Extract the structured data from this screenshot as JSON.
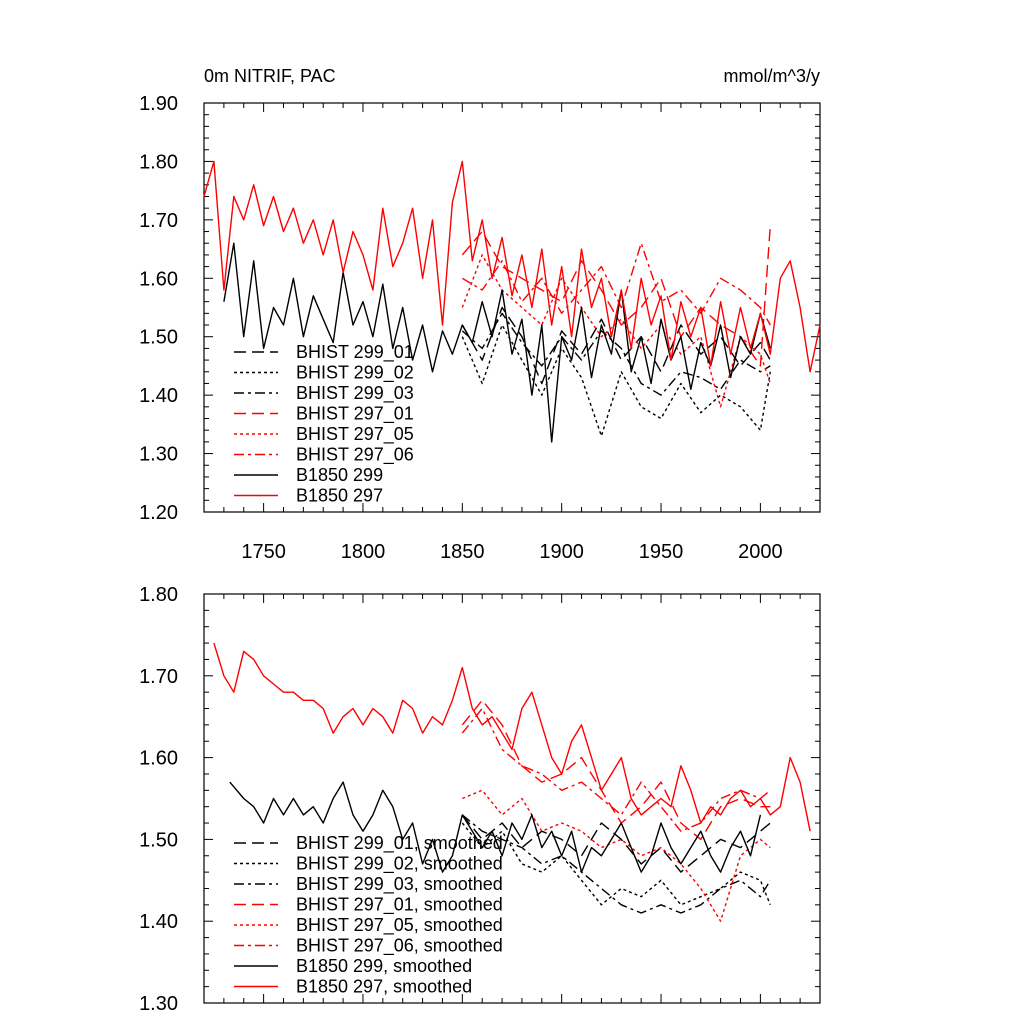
{
  "header": {
    "title": "0m NITRIF, PAC",
    "units": "mmol/m^3/y"
  },
  "colors": {
    "black_series": "#000000",
    "red_series": "#ff0000"
  },
  "chart_data": [
    {
      "type": "line",
      "title": "0m NITRIF, PAC",
      "units_label": "mmol/m^3/y",
      "xlim": [
        1720,
        2030
      ],
      "ylim": [
        1.2,
        1.9
      ],
      "x_ticks": [
        "1750",
        "1800",
        "1850",
        "1900",
        "1950",
        "2000"
      ],
      "y_ticks": [
        "1.20",
        "1.30",
        "1.40",
        "1.50",
        "1.60",
        "1.70",
        "1.80",
        "1.90"
      ],
      "legend_position": "lower-left",
      "series": [
        {
          "name": "BHIST 299_01",
          "color": "#000000",
          "dash": "long-dash",
          "x": [
            1850,
            1860,
            1870,
            1880,
            1890,
            1900,
            1910,
            1920,
            1930,
            1940,
            1950,
            1960,
            1970,
            1980,
            1990,
            2000,
            2005
          ],
          "y": [
            1.52,
            1.46,
            1.55,
            1.5,
            1.42,
            1.51,
            1.47,
            1.53,
            1.46,
            1.5,
            1.44,
            1.52,
            1.47,
            1.5,
            1.45,
            1.49,
            1.46
          ]
        },
        {
          "name": "BHIST 299_02",
          "color": "#000000",
          "dash": "dot",
          "x": [
            1850,
            1860,
            1870,
            1880,
            1890,
            1900,
            1910,
            1920,
            1930,
            1940,
            1950,
            1960,
            1970,
            1980,
            1990,
            2000,
            2005
          ],
          "y": [
            1.5,
            1.42,
            1.52,
            1.46,
            1.4,
            1.48,
            1.43,
            1.33,
            1.44,
            1.38,
            1.36,
            1.42,
            1.37,
            1.4,
            1.38,
            1.34,
            1.44
          ]
        },
        {
          "name": "BHIST 299_03",
          "color": "#000000",
          "dash": "dash-dot",
          "x": [
            1850,
            1860,
            1870,
            1880,
            1890,
            1900,
            1910,
            1920,
            1930,
            1940,
            1950,
            1960,
            1970,
            1980,
            1990,
            2000,
            2005
          ],
          "y": [
            1.51,
            1.48,
            1.54,
            1.49,
            1.45,
            1.5,
            1.46,
            1.51,
            1.48,
            1.42,
            1.4,
            1.44,
            1.43,
            1.41,
            1.46,
            1.44,
            1.45
          ]
        },
        {
          "name": "BHIST 297_01",
          "color": "#ff0000",
          "dash": "long-dash",
          "x": [
            1850,
            1860,
            1870,
            1880,
            1890,
            1900,
            1910,
            1920,
            1930,
            1940,
            1950,
            1960,
            1970,
            1980,
            1990,
            2000,
            2005
          ],
          "y": [
            1.64,
            1.68,
            1.62,
            1.6,
            1.58,
            1.56,
            1.63,
            1.58,
            1.52,
            1.55,
            1.6,
            1.5,
            1.55,
            1.52,
            1.5,
            1.45,
            1.69
          ]
        },
        {
          "name": "BHIST 297_05",
          "color": "#ff0000",
          "dash": "dot",
          "x": [
            1850,
            1860,
            1870,
            1880,
            1890,
            1900,
            1910,
            1920,
            1930,
            1940,
            1950,
            1960,
            1970,
            1980,
            1990,
            2000,
            2005
          ],
          "y": [
            1.55,
            1.64,
            1.58,
            1.55,
            1.52,
            1.6,
            1.55,
            1.5,
            1.53,
            1.48,
            1.52,
            1.47,
            1.5,
            1.38,
            1.5,
            1.47,
            1.42
          ]
        },
        {
          "name": "BHIST 297_06",
          "color": "#ff0000",
          "dash": "dash-dot",
          "x": [
            1850,
            1860,
            1870,
            1880,
            1890,
            1900,
            1910,
            1920,
            1930,
            1940,
            1950,
            1960,
            1970,
            1980,
            1990,
            2000,
            2005
          ],
          "y": [
            1.6,
            1.58,
            1.63,
            1.56,
            1.6,
            1.54,
            1.58,
            1.62,
            1.55,
            1.66,
            1.56,
            1.58,
            1.54,
            1.6,
            1.58,
            1.55,
            1.52
          ]
        },
        {
          "name": "B1850 299",
          "color": "#000000",
          "dash": "solid",
          "x": [
            1730,
            1735,
            1740,
            1745,
            1750,
            1755,
            1760,
            1765,
            1770,
            1775,
            1780,
            1785,
            1790,
            1795,
            1800,
            1805,
            1810,
            1815,
            1820,
            1825,
            1830,
            1835,
            1840,
            1845,
            1850,
            1855,
            1860,
            1865,
            1870,
            1875,
            1880,
            1885,
            1890,
            1895,
            1900,
            1905,
            1910,
            1915,
            1920,
            1925,
            1930,
            1935,
            1940,
            1945,
            1950,
            1955,
            1960,
            1965,
            1970,
            1975,
            1980,
            1985,
            1990,
            1995,
            2000,
            2005
          ],
          "y": [
            1.56,
            1.66,
            1.5,
            1.63,
            1.48,
            1.55,
            1.52,
            1.6,
            1.5,
            1.57,
            1.53,
            1.49,
            1.61,
            1.52,
            1.56,
            1.5,
            1.59,
            1.48,
            1.55,
            1.46,
            1.52,
            1.44,
            1.51,
            1.47,
            1.52,
            1.49,
            1.56,
            1.5,
            1.58,
            1.47,
            1.53,
            1.4,
            1.52,
            1.32,
            1.5,
            1.46,
            1.55,
            1.43,
            1.52,
            1.47,
            1.58,
            1.44,
            1.5,
            1.42,
            1.53,
            1.46,
            1.5,
            1.41,
            1.49,
            1.45,
            1.52,
            1.43,
            1.5,
            1.47,
            1.54,
            1.48
          ]
        },
        {
          "name": "B1850 297",
          "color": "#ff0000",
          "dash": "solid",
          "x": [
            1720,
            1725,
            1730,
            1735,
            1740,
            1745,
            1750,
            1755,
            1760,
            1765,
            1770,
            1775,
            1780,
            1785,
            1790,
            1795,
            1800,
            1805,
            1810,
            1815,
            1820,
            1825,
            1830,
            1835,
            1840,
            1845,
            1850,
            1855,
            1860,
            1865,
            1870,
            1875,
            1880,
            1885,
            1890,
            1895,
            1900,
            1905,
            1910,
            1915,
            1920,
            1925,
            1930,
            1935,
            1940,
            1945,
            1950,
            1955,
            1960,
            1965,
            1970,
            1975,
            1980,
            1985,
            1990,
            1995,
            2000,
            2005,
            2010,
            2015,
            2020,
            2025,
            2030
          ],
          "y": [
            1.74,
            1.8,
            1.58,
            1.74,
            1.7,
            1.76,
            1.69,
            1.74,
            1.68,
            1.72,
            1.66,
            1.7,
            1.64,
            1.7,
            1.61,
            1.68,
            1.64,
            1.58,
            1.72,
            1.62,
            1.66,
            1.72,
            1.6,
            1.7,
            1.52,
            1.73,
            1.8,
            1.63,
            1.7,
            1.6,
            1.67,
            1.57,
            1.64,
            1.55,
            1.65,
            1.52,
            1.62,
            1.5,
            1.65,
            1.55,
            1.6,
            1.5,
            1.58,
            1.48,
            1.6,
            1.52,
            1.57,
            1.46,
            1.56,
            1.5,
            1.55,
            1.45,
            1.56,
            1.47,
            1.55,
            1.48,
            1.54,
            1.47,
            1.6,
            1.63,
            1.55,
            1.44,
            1.52
          ]
        }
      ]
    },
    {
      "type": "line",
      "xlim": [
        1720,
        2030
      ],
      "ylim": [
        1.3,
        1.8
      ],
      "y_ticks": [
        "1.30",
        "1.40",
        "1.50",
        "1.60",
        "1.70",
        "1.80"
      ],
      "legend_position": "lower-left",
      "series": [
        {
          "name": "BHIST 299_01, smoothed",
          "color": "#000000",
          "dash": "long-dash",
          "x": [
            1850,
            1860,
            1870,
            1880,
            1890,
            1900,
            1910,
            1920,
            1930,
            1940,
            1950,
            1960,
            1970,
            1980,
            1990,
            2000,
            2005
          ],
          "y": [
            1.53,
            1.5,
            1.52,
            1.49,
            1.51,
            1.5,
            1.48,
            1.52,
            1.5,
            1.47,
            1.49,
            1.46,
            1.48,
            1.5,
            1.49,
            1.51,
            1.52
          ]
        },
        {
          "name": "BHIST 299_02, smoothed",
          "color": "#000000",
          "dash": "dot",
          "x": [
            1850,
            1860,
            1870,
            1880,
            1890,
            1900,
            1910,
            1920,
            1930,
            1940,
            1950,
            1960,
            1970,
            1980,
            1990,
            2000,
            2005
          ],
          "y": [
            1.52,
            1.49,
            1.51,
            1.47,
            1.46,
            1.48,
            1.45,
            1.42,
            1.44,
            1.43,
            1.45,
            1.42,
            1.43,
            1.44,
            1.46,
            1.45,
            1.42
          ]
        },
        {
          "name": "BHIST 299_03, smoothed",
          "color": "#000000",
          "dash": "dash-dot",
          "x": [
            1850,
            1860,
            1870,
            1880,
            1890,
            1900,
            1910,
            1920,
            1930,
            1940,
            1950,
            1960,
            1970,
            1980,
            1990,
            2000,
            2005
          ],
          "y": [
            1.53,
            1.51,
            1.5,
            1.49,
            1.47,
            1.48,
            1.46,
            1.44,
            1.42,
            1.41,
            1.42,
            1.41,
            1.42,
            1.44,
            1.45,
            1.43,
            1.45
          ]
        },
        {
          "name": "BHIST 297_01, smoothed",
          "color": "#ff0000",
          "dash": "long-dash",
          "x": [
            1850,
            1860,
            1870,
            1880,
            1890,
            1900,
            1910,
            1920,
            1930,
            1940,
            1950,
            1960,
            1970,
            1980,
            1990,
            2000,
            2005
          ],
          "y": [
            1.64,
            1.67,
            1.64,
            1.59,
            1.57,
            1.58,
            1.6,
            1.56,
            1.52,
            1.54,
            1.57,
            1.52,
            1.5,
            1.54,
            1.55,
            1.54,
            1.54
          ]
        },
        {
          "name": "BHIST 297_05, smoothed",
          "color": "#ff0000",
          "dash": "dot",
          "x": [
            1850,
            1860,
            1870,
            1880,
            1890,
            1900,
            1910,
            1920,
            1930,
            1940,
            1950,
            1960,
            1970,
            1980,
            1990,
            2000,
            2005
          ],
          "y": [
            1.55,
            1.56,
            1.53,
            1.55,
            1.51,
            1.52,
            1.51,
            1.49,
            1.5,
            1.48,
            1.49,
            1.47,
            1.44,
            1.4,
            1.48,
            1.5,
            1.49
          ]
        },
        {
          "name": "BHIST 297_06, smoothed",
          "color": "#ff0000",
          "dash": "dash-dot",
          "x": [
            1850,
            1860,
            1870,
            1880,
            1890,
            1900,
            1910,
            1920,
            1930,
            1940,
            1950,
            1960,
            1970,
            1980,
            1990,
            2000,
            2005
          ],
          "y": [
            1.63,
            1.66,
            1.61,
            1.59,
            1.58,
            1.56,
            1.57,
            1.55,
            1.53,
            1.57,
            1.54,
            1.51,
            1.52,
            1.55,
            1.56,
            1.55,
            1.56
          ]
        },
        {
          "name": "B1850 299, smoothed",
          "color": "#000000",
          "dash": "solid",
          "x": [
            1733,
            1740,
            1745,
            1750,
            1755,
            1760,
            1765,
            1770,
            1775,
            1780,
            1785,
            1790,
            1795,
            1800,
            1805,
            1810,
            1815,
            1820,
            1825,
            1830,
            1835,
            1840,
            1845,
            1850,
            1855,
            1860,
            1865,
            1870,
            1875,
            1880,
            1885,
            1890,
            1895,
            1900,
            1905,
            1910,
            1915,
            1920,
            1925,
            1930,
            1935,
            1940,
            1945,
            1950,
            1955,
            1960,
            1965,
            1970,
            1975,
            1980,
            1985,
            1990,
            1995,
            2000
          ],
          "y": [
            1.57,
            1.55,
            1.54,
            1.52,
            1.55,
            1.53,
            1.55,
            1.53,
            1.54,
            1.52,
            1.55,
            1.57,
            1.53,
            1.51,
            1.53,
            1.56,
            1.54,
            1.5,
            1.52,
            1.47,
            1.5,
            1.46,
            1.48,
            1.53,
            1.51,
            1.49,
            1.51,
            1.48,
            1.52,
            1.5,
            1.53,
            1.49,
            1.51,
            1.48,
            1.51,
            1.46,
            1.49,
            1.48,
            1.5,
            1.52,
            1.49,
            1.46,
            1.48,
            1.52,
            1.49,
            1.47,
            1.49,
            1.51,
            1.48,
            1.46,
            1.49,
            1.51,
            1.48,
            1.53
          ]
        },
        {
          "name": "B1850 297, smoothed",
          "color": "#ff0000",
          "dash": "solid",
          "x": [
            1725,
            1730,
            1735,
            1740,
            1745,
            1750,
            1755,
            1760,
            1765,
            1770,
            1775,
            1780,
            1785,
            1790,
            1795,
            1800,
            1805,
            1810,
            1815,
            1820,
            1825,
            1830,
            1835,
            1840,
            1845,
            1850,
            1855,
            1860,
            1865,
            1870,
            1875,
            1880,
            1885,
            1890,
            1895,
            1900,
            1905,
            1910,
            1915,
            1920,
            1925,
            1930,
            1935,
            1940,
            1945,
            1950,
            1955,
            1960,
            1965,
            1970,
            1975,
            1980,
            1985,
            1990,
            1995,
            2000,
            2005,
            2010,
            2015,
            2020,
            2025
          ],
          "y": [
            1.74,
            1.7,
            1.68,
            1.73,
            1.72,
            1.7,
            1.69,
            1.68,
            1.68,
            1.67,
            1.67,
            1.66,
            1.63,
            1.65,
            1.66,
            1.64,
            1.66,
            1.65,
            1.63,
            1.67,
            1.66,
            1.63,
            1.65,
            1.64,
            1.67,
            1.71,
            1.66,
            1.64,
            1.65,
            1.63,
            1.61,
            1.66,
            1.68,
            1.64,
            1.6,
            1.58,
            1.62,
            1.64,
            1.6,
            1.56,
            1.58,
            1.6,
            1.55,
            1.53,
            1.54,
            1.55,
            1.54,
            1.59,
            1.56,
            1.52,
            1.54,
            1.53,
            1.55,
            1.56,
            1.54,
            1.55,
            1.53,
            1.54,
            1.6,
            1.57,
            1.51
          ]
        }
      ]
    }
  ]
}
